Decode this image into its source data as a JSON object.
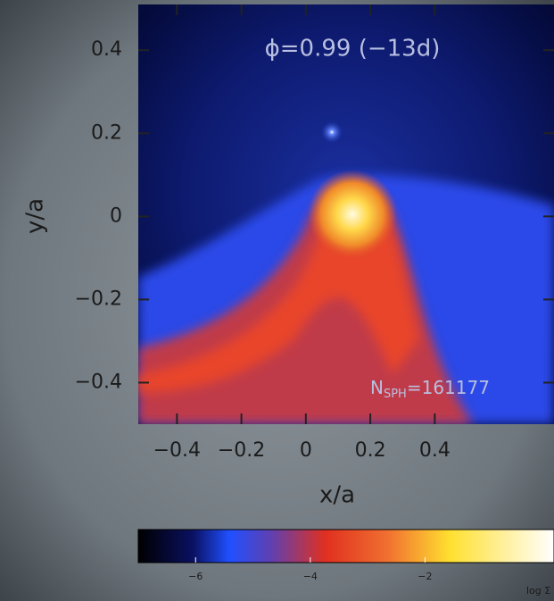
{
  "chart_data": {
    "type": "heatmap",
    "title": "ϕ=0.99 (−13d)",
    "annotation": {
      "base": "N",
      "subscript": "SPH",
      "suffix": "=161177"
    },
    "x_label": "x/a",
    "y_label": "y/a",
    "xlim": [
      -0.52,
      0.77
    ],
    "ylim": [
      -0.5,
      0.51
    ],
    "xticks": [
      {
        "value": -0.4,
        "label": "−0.4"
      },
      {
        "value": -0.2,
        "label": "−0.2"
      },
      0,
      0.2,
      0.4
    ],
    "yticks": [
      {
        "value": -0.4,
        "label": "−0.4"
      },
      {
        "value": -0.2,
        "label": "−0.2"
      },
      0,
      0.2,
      0.4
    ],
    "colorbar": {
      "lim": [
        -7,
        0.25
      ],
      "ticks": [
        {
          "value": -6,
          "label": "−6"
        },
        {
          "value": -4,
          "label": "−4"
        },
        {
          "value": -2,
          "label": "−2"
        }
      ],
      "label": "log Σ"
    }
  }
}
